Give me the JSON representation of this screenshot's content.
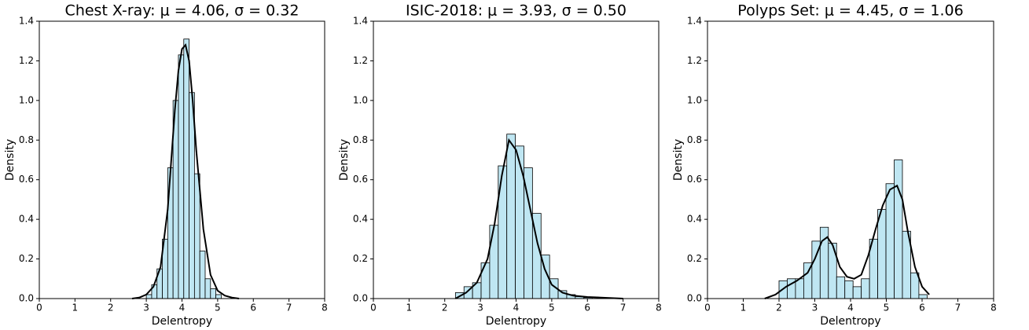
{
  "chart_data": [
    {
      "type": "histogram",
      "title": "Chest X-ray: μ = 4.06, σ = 0.32",
      "xlabel": "Delentropy",
      "ylabel": "Density",
      "bins": [
        3.0,
        3.15,
        3.3,
        3.45,
        3.6,
        3.75,
        3.9,
        4.05,
        4.2,
        4.35,
        4.5,
        4.65,
        4.8,
        4.95,
        5.1
      ],
      "values": [
        0.02,
        0.07,
        0.15,
        0.3,
        0.66,
        1.0,
        1.23,
        1.31,
        1.04,
        0.63,
        0.24,
        0.1,
        0.05,
        0.02
      ],
      "color": "#bfe6f2",
      "edgecolor": "#000000",
      "kde_x": [
        2.6,
        2.8,
        3.0,
        3.2,
        3.4,
        3.6,
        3.8,
        3.9,
        4.0,
        4.1,
        4.2,
        4.3,
        4.4,
        4.6,
        4.8,
        5.0,
        5.2,
        5.4,
        5.6
      ],
      "kde_y": [
        0.0,
        0.005,
        0.02,
        0.06,
        0.16,
        0.45,
        0.95,
        1.15,
        1.26,
        1.28,
        1.2,
        1.0,
        0.75,
        0.35,
        0.12,
        0.04,
        0.015,
        0.005,
        0.0
      ],
      "kde_color": "#000000",
      "xlim": [
        0,
        8
      ],
      "xticks": [
        0,
        1,
        2,
        3,
        4,
        5,
        6,
        7,
        8
      ],
      "ylim": [
        0,
        1.4
      ],
      "yticks": [
        {
          "value": 0,
          "label": "0.0"
        },
        0.2,
        0.4,
        0.6,
        0.8,
        {
          "value": 1,
          "label": "1.0"
        },
        1.2,
        1.4
      ]
    },
    {
      "type": "histogram",
      "title": "ISIC-2018: μ = 3.93, σ = 0.50",
      "xlabel": "Delentropy",
      "ylabel": "Density",
      "bins": [
        2.3,
        2.54,
        2.78,
        3.02,
        3.26,
        3.5,
        3.74,
        3.98,
        4.22,
        4.46,
        4.7,
        4.94,
        5.18,
        5.42,
        5.66,
        5.9,
        6.14
      ],
      "values": [
        0.03,
        0.06,
        0.08,
        0.18,
        0.37,
        0.67,
        0.83,
        0.77,
        0.66,
        0.43,
        0.22,
        0.1,
        0.04,
        0.02,
        0.01,
        0.005
      ],
      "color": "#bfe6f2",
      "edgecolor": "#000000",
      "kde_x": [
        2.3,
        2.6,
        2.9,
        3.2,
        3.4,
        3.6,
        3.8,
        4.0,
        4.2,
        4.4,
        4.6,
        4.8,
        5.0,
        5.3,
        5.6,
        6.0,
        6.5,
        7.0
      ],
      "kde_y": [
        0.0,
        0.03,
        0.08,
        0.2,
        0.38,
        0.62,
        0.8,
        0.75,
        0.62,
        0.45,
        0.28,
        0.15,
        0.07,
        0.03,
        0.015,
        0.008,
        0.004,
        0.0
      ],
      "kde_color": "#000000",
      "xlim": [
        0,
        8
      ],
      "xticks": [
        0,
        1,
        2,
        3,
        4,
        5,
        6,
        7,
        8
      ],
      "ylim": [
        0,
        1.4
      ],
      "yticks": [
        {
          "value": 0,
          "label": "0.0"
        },
        0.2,
        0.4,
        0.6,
        0.8,
        {
          "value": 1,
          "label": "1.0"
        },
        1.2,
        1.4
      ]
    },
    {
      "type": "histogram",
      "title": "Polyps Set: μ = 4.45, σ = 1.06",
      "xlabel": "Delentropy",
      "ylabel": "Density",
      "bins": [
        2.0,
        2.23,
        2.46,
        2.69,
        2.92,
        3.15,
        3.38,
        3.61,
        3.84,
        4.07,
        4.3,
        4.53,
        4.76,
        4.99,
        5.22,
        5.45,
        5.68,
        5.91,
        6.14
      ],
      "values": [
        0.09,
        0.1,
        0.1,
        0.18,
        0.29,
        0.36,
        0.28,
        0.11,
        0.09,
        0.06,
        0.1,
        0.3,
        0.45,
        0.58,
        0.7,
        0.34,
        0.13,
        0.02
      ],
      "color": "#bfe6f2",
      "edgecolor": "#000000",
      "kde_x": [
        1.6,
        1.9,
        2.2,
        2.5,
        2.8,
        3.0,
        3.2,
        3.35,
        3.5,
        3.7,
        3.9,
        4.1,
        4.3,
        4.5,
        4.7,
        4.9,
        5.1,
        5.3,
        5.45,
        5.6,
        5.8,
        6.0,
        6.2
      ],
      "kde_y": [
        0.0,
        0.02,
        0.06,
        0.09,
        0.13,
        0.2,
        0.29,
        0.31,
        0.27,
        0.16,
        0.11,
        0.1,
        0.12,
        0.22,
        0.35,
        0.47,
        0.55,
        0.57,
        0.5,
        0.34,
        0.16,
        0.06,
        0.02
      ],
      "kde_color": "#000000",
      "xlim": [
        0,
        8
      ],
      "xticks": [
        0,
        1,
        2,
        3,
        4,
        5,
        6,
        7,
        8
      ],
      "ylim": [
        0,
        1.4
      ],
      "yticks": [
        {
          "value": 0,
          "label": "0.0"
        },
        0.2,
        0.4,
        0.6,
        0.8,
        {
          "value": 1,
          "label": "1.0"
        },
        1.2,
        1.4
      ]
    }
  ]
}
